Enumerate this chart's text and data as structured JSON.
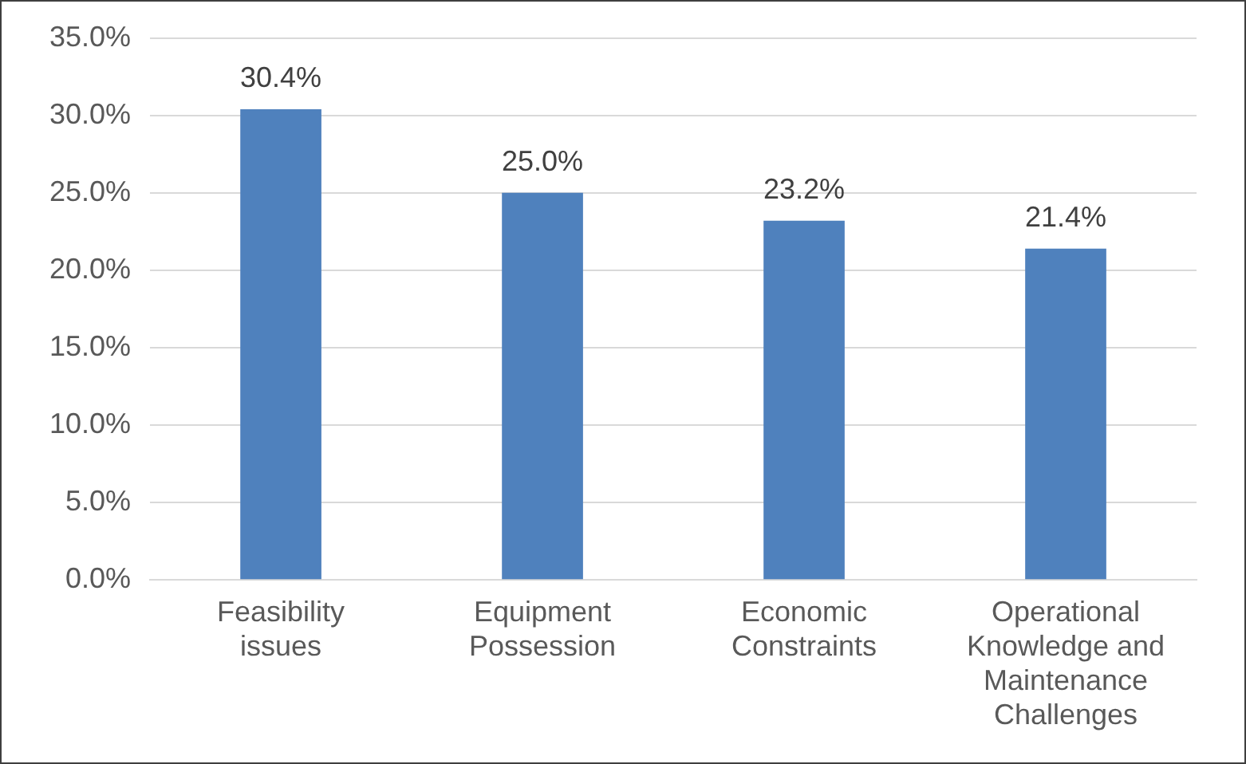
{
  "chart_data": {
    "type": "bar",
    "categories": [
      "Feasibility issues",
      "Equipment Possession",
      "Economic Constraints",
      "Operational Knowledge and Maintenance Challenges"
    ],
    "values": [
      30.4,
      25.0,
      23.2,
      21.4
    ],
    "color": "#4f81bd",
    "value_labels": [
      "30.4%",
      "25.0%",
      "23.2%",
      "21.4%"
    ],
    "ylim": [
      0,
      35
    ],
    "yticks": [
      {
        "value": 0,
        "label": "0.0%"
      },
      {
        "value": 5,
        "label": "5.0%"
      },
      {
        "value": 10,
        "label": "10.0%"
      },
      {
        "value": 15,
        "label": "15.0%"
      },
      {
        "value": 20,
        "label": "20.0%"
      },
      {
        "value": 25,
        "label": "25.0%"
      },
      {
        "value": 30,
        "label": "30.0%"
      },
      {
        "value": 35,
        "label": "35.0%"
      }
    ],
    "grid": "y",
    "legend": false
  }
}
